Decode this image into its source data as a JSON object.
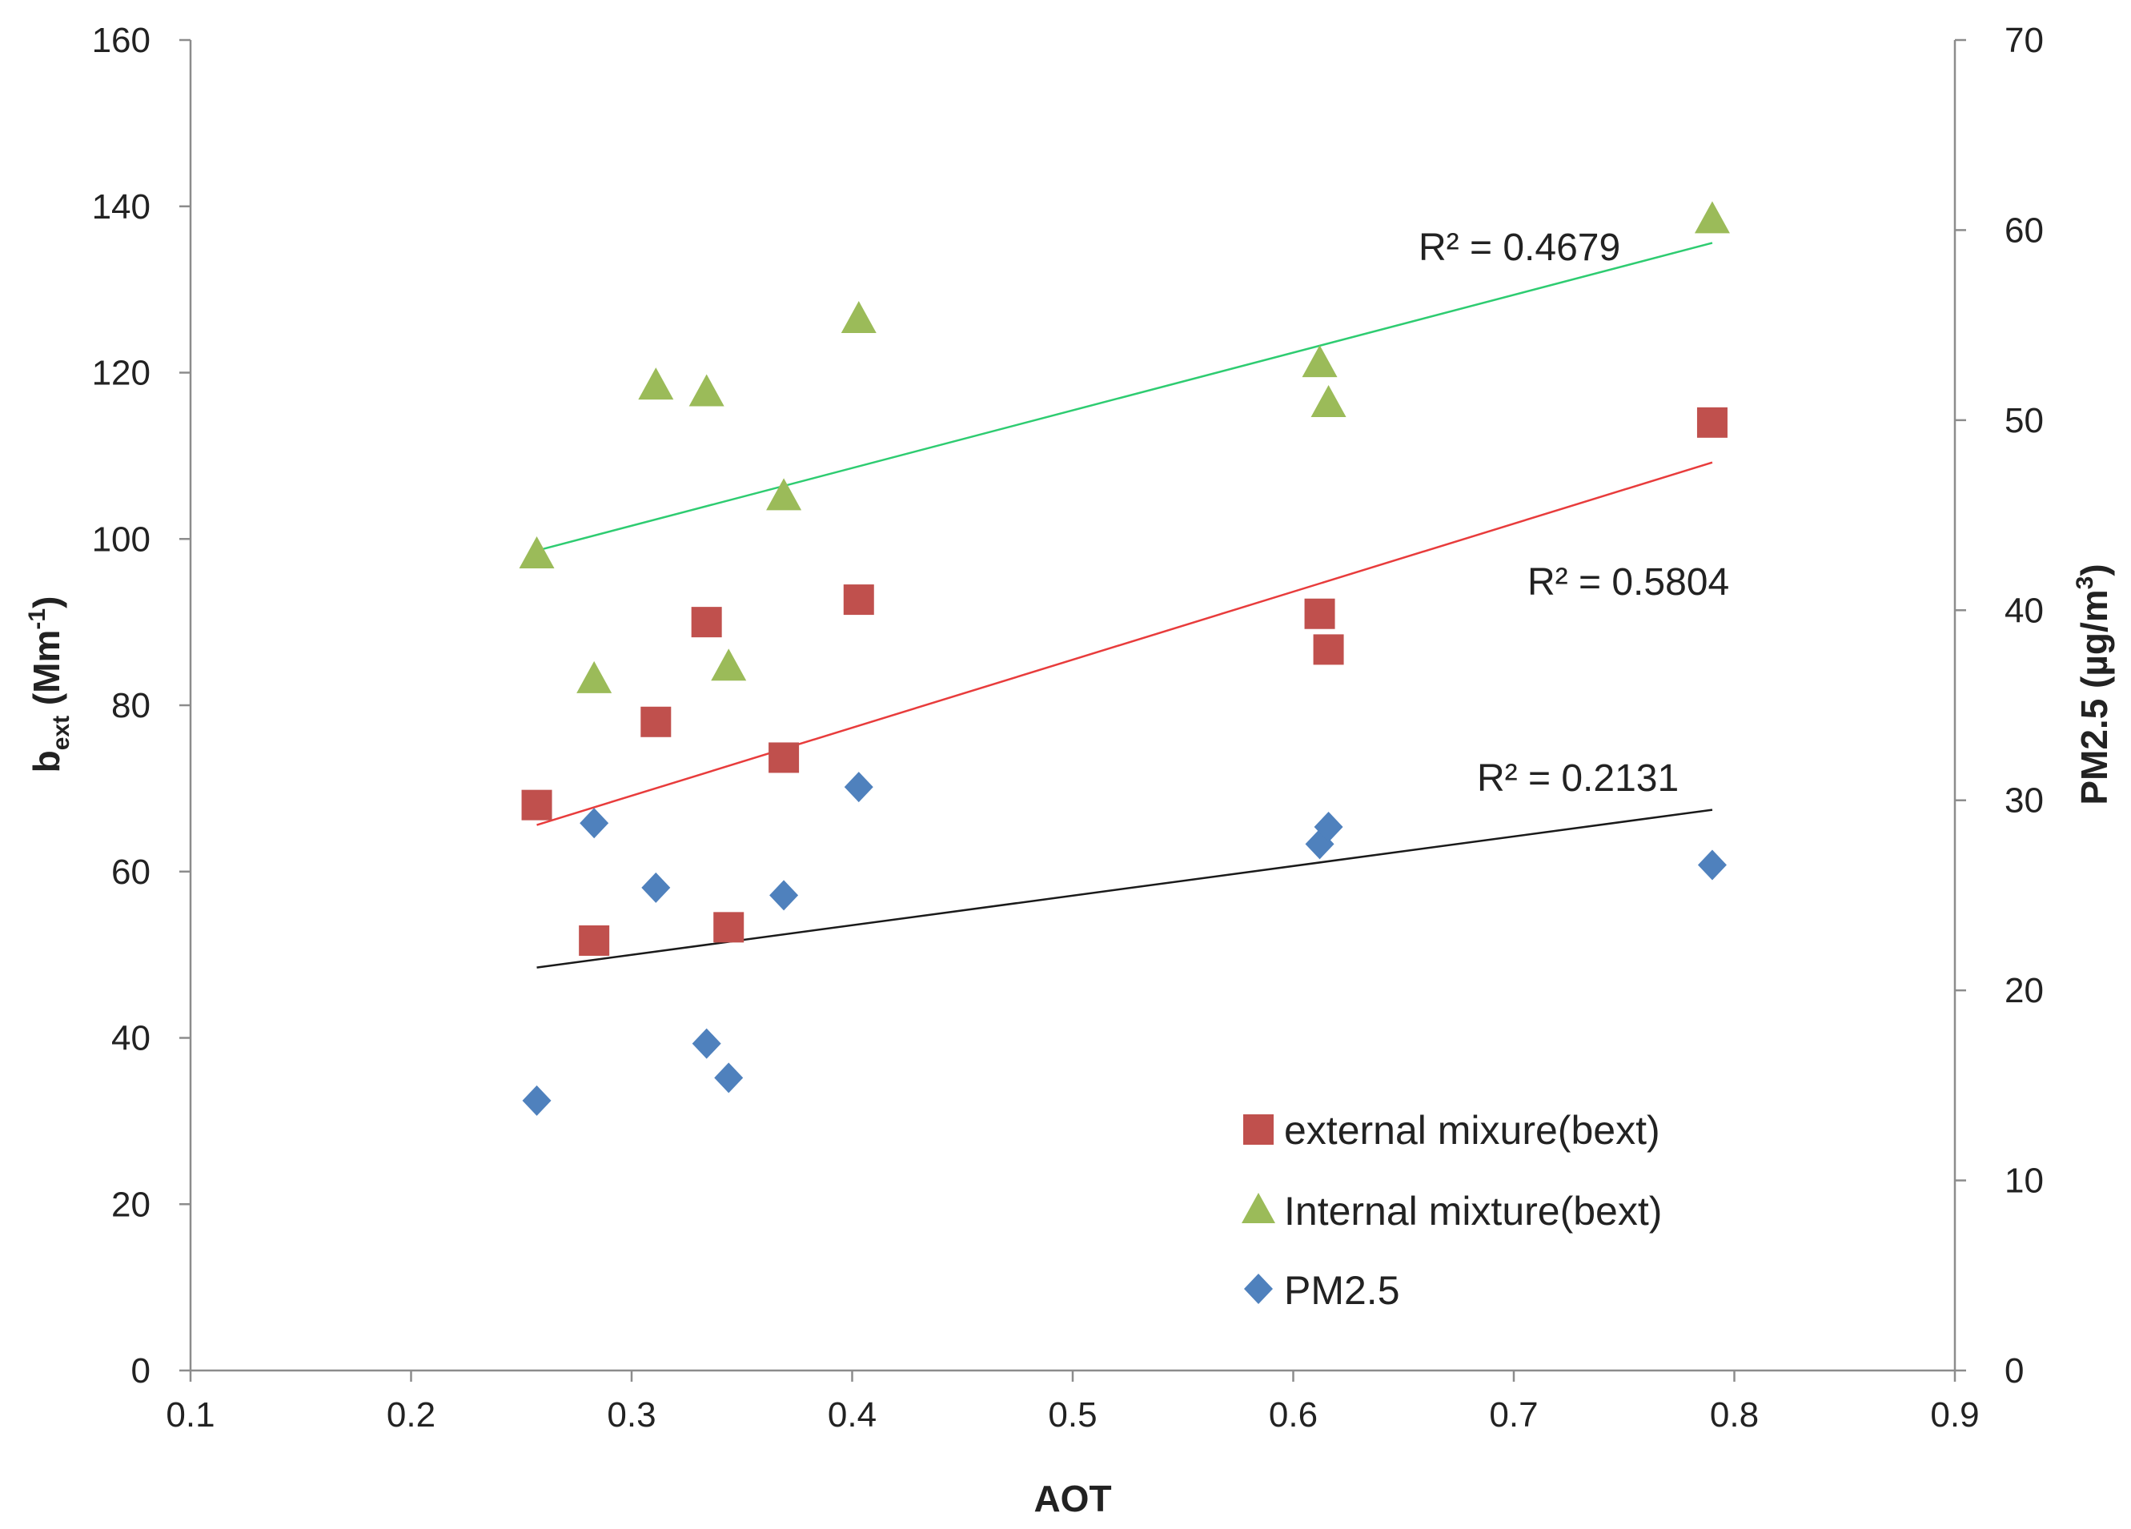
{
  "chart_data": {
    "type": "scatter",
    "title": "",
    "xlabel": "AOT",
    "ylabel_left": {
      "main": "b",
      "sub": "ext",
      "rest_open": " (Mm",
      "sup": "-1",
      "rest_close": ")"
    },
    "ylabel_right": {
      "main": "PM2.5 (µg/m",
      "sup": "3",
      "rest_close": ")"
    },
    "xlim": [
      0.1,
      0.9
    ],
    "ylim_left": [
      0,
      160
    ],
    "ylim_right": [
      0,
      70
    ],
    "x_ticks": [
      "0.1",
      "0.2",
      "0.3",
      "0.4",
      "0.5",
      "0.6",
      "0.7",
      "0.8",
      "0.9"
    ],
    "x_tick_values": [
      0.1,
      0.2,
      0.3,
      0.4,
      0.5,
      0.6,
      0.7,
      0.8,
      0.9
    ],
    "y_left_ticks": [
      "0",
      "20",
      "40",
      "60",
      "80",
      "100",
      "120",
      "140",
      "160"
    ],
    "y_left_tick_values": [
      0,
      20,
      40,
      60,
      80,
      100,
      120,
      140,
      160
    ],
    "y_right_ticks": [
      "0",
      "10",
      "20",
      "30",
      "40",
      "50",
      "60",
      "70"
    ],
    "y_right_tick_values": [
      0,
      10,
      20,
      30,
      40,
      50,
      60,
      70
    ],
    "series": [
      {
        "name": "external mixure(bext)",
        "axis": "left",
        "marker": "square",
        "color": "#C0504D",
        "points": [
          [
            0.257,
            68
          ],
          [
            0.283,
            51.7
          ],
          [
            0.311,
            78
          ],
          [
            0.334,
            90
          ],
          [
            0.344,
            53.3
          ],
          [
            0.369,
            73.7
          ],
          [
            0.403,
            92.7
          ],
          [
            0.612,
            91
          ],
          [
            0.616,
            86.7
          ],
          [
            0.79,
            114
          ]
        ],
        "trendline": {
          "x": [
            0.257,
            0.79
          ],
          "y": [
            65.6,
            109.2
          ],
          "color": "#E83C3C",
          "r2_label": "R² = 0.5804"
        }
      },
      {
        "name": "Internal mixture(bext)",
        "axis": "left",
        "marker": "triangle",
        "color": "#9BBB59",
        "points": [
          [
            0.257,
            98
          ],
          [
            0.283,
            83
          ],
          [
            0.311,
            118.3
          ],
          [
            0.334,
            117.5
          ],
          [
            0.344,
            84.5
          ],
          [
            0.369,
            105
          ],
          [
            0.403,
            126.3
          ],
          [
            0.612,
            121
          ],
          [
            0.616,
            116.2
          ],
          [
            0.79,
            138.3
          ]
        ],
        "trendline": {
          "x": [
            0.257,
            0.79
          ],
          "y": [
            98.6,
            135.6
          ],
          "color": "#2ECC71",
          "r2_label": "R² = 0.4679"
        }
      },
      {
        "name": "PM2.5",
        "axis": "right",
        "marker": "diamond",
        "color": "#4F81BD",
        "points": [
          [
            0.257,
            14.2
          ],
          [
            0.283,
            28.8
          ],
          [
            0.311,
            25.4
          ],
          [
            0.334,
            17.2
          ],
          [
            0.344,
            15.4
          ],
          [
            0.369,
            25
          ],
          [
            0.403,
            30.7
          ],
          [
            0.612,
            27.7
          ],
          [
            0.616,
            28.6
          ],
          [
            0.79,
            26.6
          ]
        ],
        "trendline": {
          "x": [
            0.257,
            0.79
          ],
          "y": [
            21.2,
            29.5
          ],
          "color": "#1a1a1a",
          "r2_label": "R² = 0.2131"
        }
      }
    ],
    "legend_position": "bottom-right"
  }
}
